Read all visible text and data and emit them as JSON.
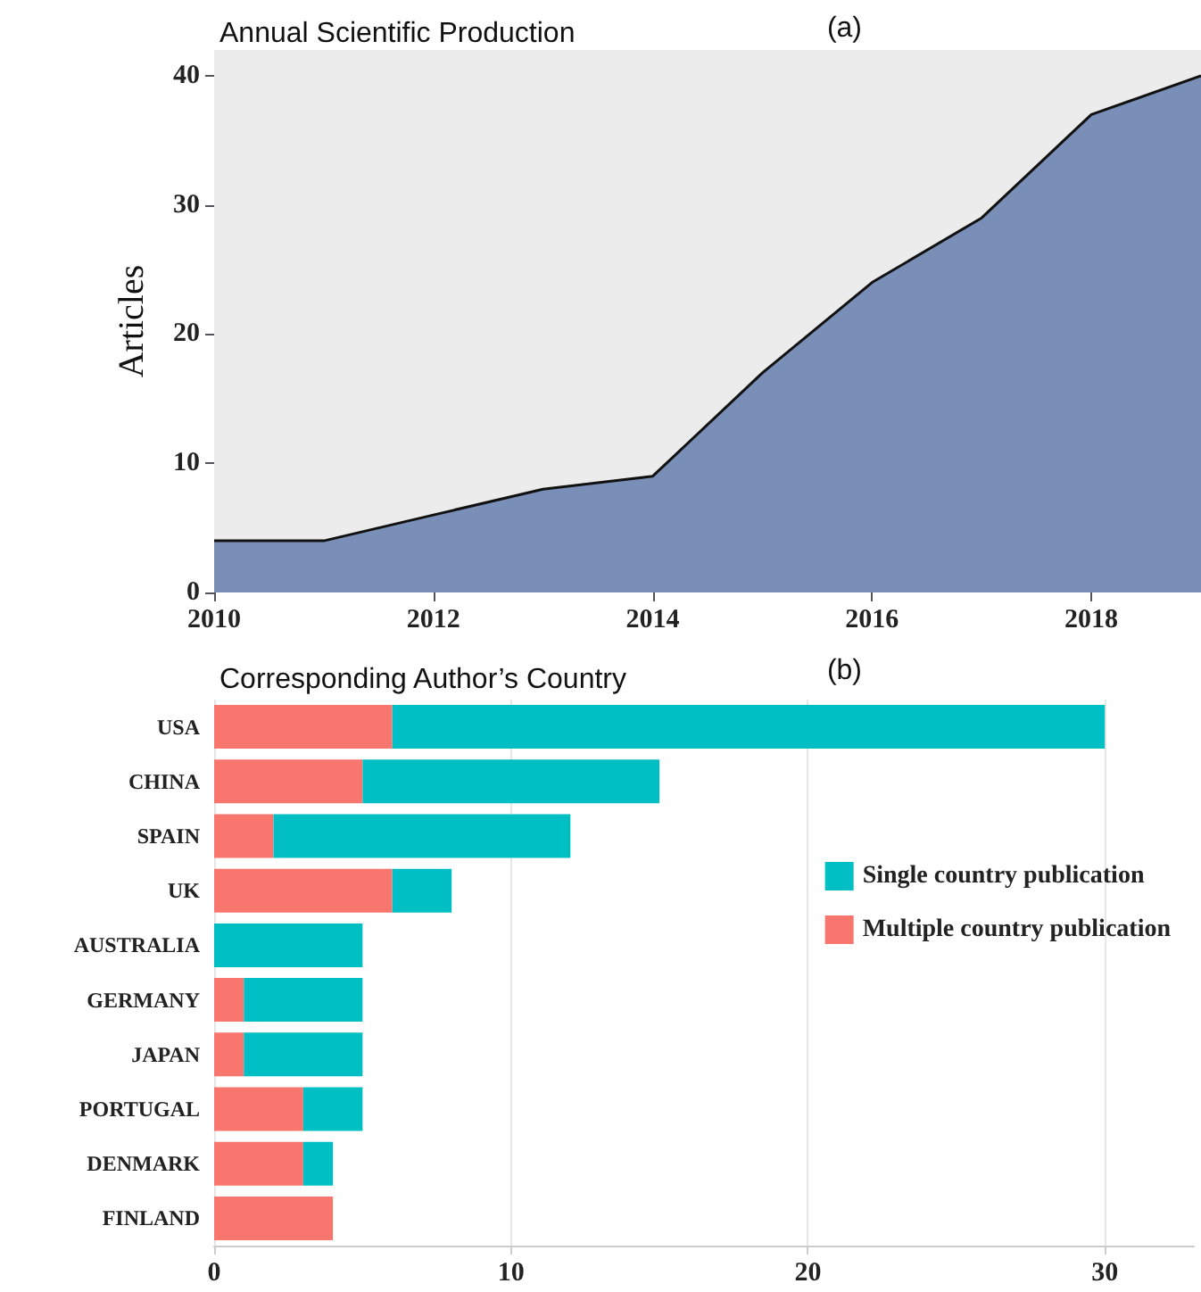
{
  "chart_data": [
    {
      "type": "area",
      "title": "Annual Scientific Production",
      "ylabel": "Articles",
      "annotations": [
        "(a)"
      ],
      "x": [
        2010,
        2011,
        2012,
        2013,
        2014,
        2015,
        2016,
        2017,
        2018,
        2019
      ],
      "series": [
        {
          "color": "#7a8fb8",
          "values": [
            4,
            4,
            6,
            8,
            9,
            17,
            24,
            29,
            37,
            40
          ]
        }
      ],
      "xlim": [
        2010,
        2019
      ],
      "xticks": [
        2010,
        2012,
        2014,
        2016,
        2018
      ],
      "ylim": [
        0,
        42
      ],
      "yticks": [
        0,
        10,
        20,
        30,
        40
      ],
      "grid": false,
      "legend": false
    },
    {
      "type": "bar",
      "title": "Corresponding Author’s Country",
      "annotations": [
        "(b)"
      ],
      "orientation": "horizontal",
      "stacked": true,
      "categories": [
        "USA",
        "CHINA",
        "SPAIN",
        "UK",
        "AUSTRALIA",
        "GERMANY",
        "JAPAN",
        "PORTUGAL",
        "DENMARK",
        "FINLAND"
      ],
      "series": [
        {
          "name": "Multiple country publication",
          "color": "#f8766d",
          "values": [
            6,
            5,
            2,
            6,
            0,
            1,
            1,
            3,
            3,
            4
          ]
        },
        {
          "name": "Single country publication",
          "color": "#00bfc4",
          "values": [
            24,
            10,
            10,
            2,
            5,
            4,
            4,
            2,
            1,
            0
          ]
        }
      ],
      "xlim": [
        0,
        33
      ],
      "xticks": [
        0,
        10,
        20,
        30
      ],
      "grid": "x",
      "legend": "right"
    }
  ]
}
